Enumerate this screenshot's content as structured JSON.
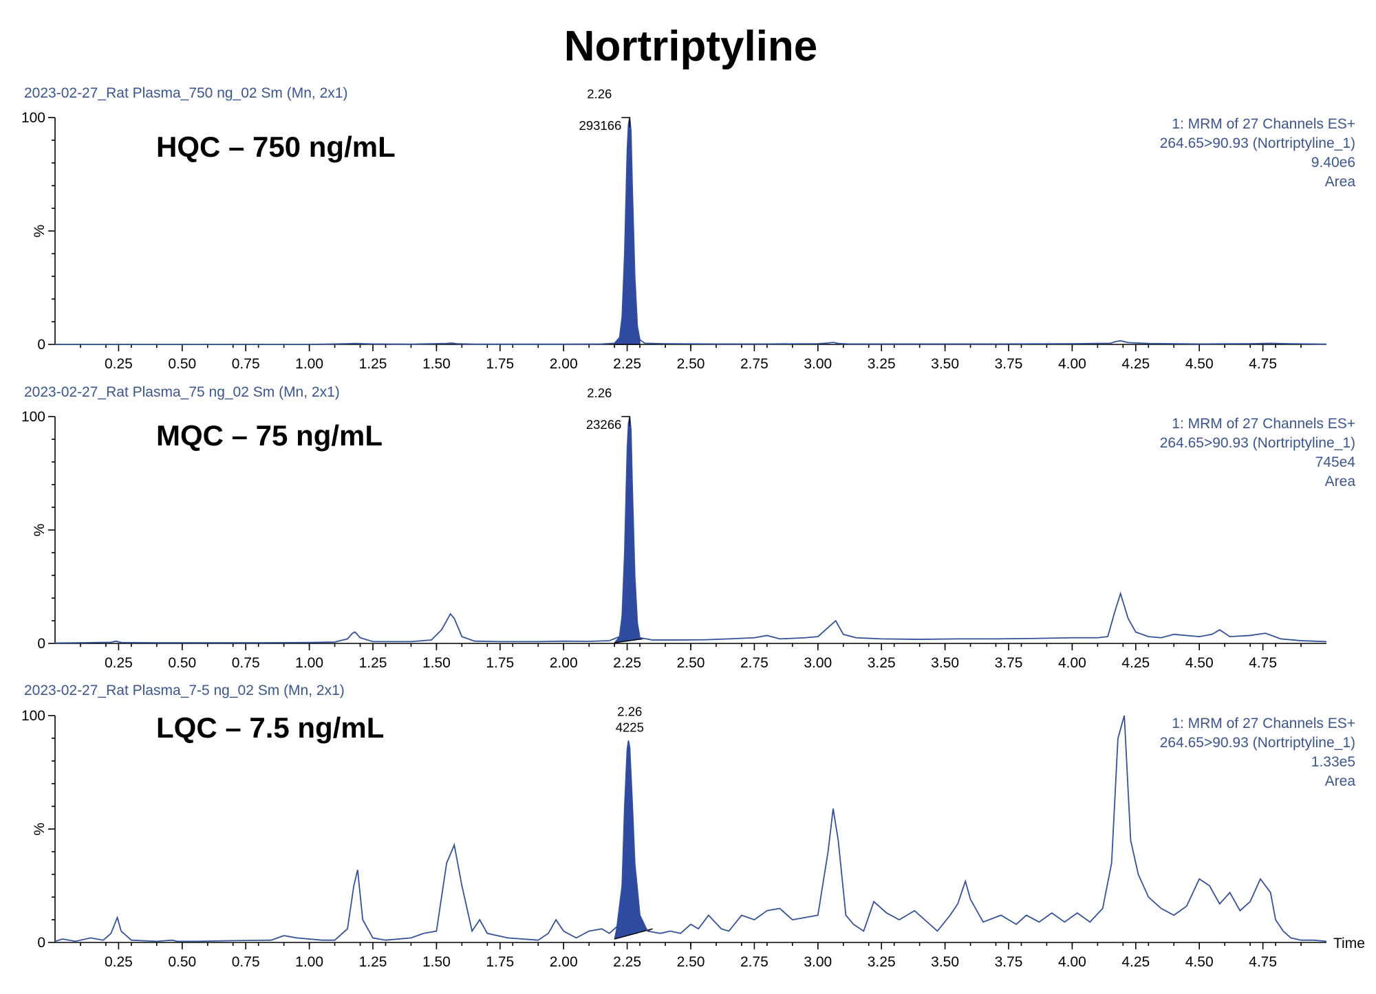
{
  "figure": {
    "title": "Nortriptyline",
    "x_axis_label": "Time",
    "y_axis_label": "%"
  },
  "chart_data": [
    {
      "type": "line",
      "panel_label": "HQC – 750 ng/mL",
      "sample_name": "2023-02-27_Rat Plasma_750 ng_02 Sm (Mn, 2x1)",
      "info_lines": [
        "1: MRM of 27 Channels ES+",
        "264.65>90.93 (Nortriptyline_1)",
        "9.40e6",
        "Area"
      ],
      "peak": {
        "rt": 2.26,
        "rt_label": "2.26",
        "area_label": "293166",
        "height": 100
      },
      "xlim": [
        0,
        5
      ],
      "ylim": [
        0,
        100
      ],
      "xticks": [
        "0.25",
        "0.50",
        "0.75",
        "1.00",
        "1.25",
        "1.50",
        "1.75",
        "2.00",
        "2.25",
        "2.50",
        "2.75",
        "3.00",
        "3.25",
        "3.50",
        "3.75",
        "4.00",
        "4.25",
        "4.50",
        "4.75"
      ],
      "yticks": [
        "0",
        "100"
      ],
      "x": [
        0.0,
        0.2,
        0.4,
        0.6,
        0.8,
        1.0,
        1.1,
        1.18,
        1.25,
        1.4,
        1.54,
        1.56,
        1.58,
        1.65,
        1.8,
        2.0,
        2.15,
        2.2,
        2.22,
        2.23,
        2.24,
        2.25,
        2.255,
        2.26,
        2.265,
        2.27,
        2.28,
        2.29,
        2.3,
        2.32,
        2.4,
        2.6,
        2.8,
        3.0,
        3.04,
        3.06,
        3.08,
        3.12,
        3.4,
        3.7,
        4.0,
        4.15,
        4.17,
        4.19,
        4.22,
        4.3,
        4.5,
        4.7,
        4.78,
        4.85,
        5.0
      ],
      "values": [
        0,
        0,
        0,
        0,
        0,
        0,
        0.2,
        0.4,
        0.2,
        0.1,
        0.4,
        0.6,
        0.3,
        0.1,
        0.1,
        0.1,
        0.2,
        0.5,
        3,
        12,
        40,
        85,
        97,
        100,
        94,
        70,
        30,
        8,
        2,
        0.5,
        0.3,
        0.2,
        0.2,
        0.3,
        0.6,
        0.9,
        0.4,
        0.2,
        0.2,
        0.2,
        0.3,
        0.5,
        1.2,
        1.6,
        0.8,
        0.4,
        0.2,
        0.3,
        0.5,
        0.3,
        0.1
      ],
      "shaded": {
        "x_start": 2.2,
        "x_end": 2.3,
        "baseline_start": 0,
        "baseline_end": 0
      }
    },
    {
      "type": "line",
      "panel_label": "MQC – 75 ng/mL",
      "sample_name": "2023-02-27_Rat Plasma_75 ng_02 Sm (Mn, 2x1)",
      "info_lines": [
        "1: MRM of 27 Channels ES+",
        "264.65>90.93 (Nortriptyline_1)",
        "745e4",
        "Area"
      ],
      "peak": {
        "rt": 2.26,
        "rt_label": "2.26",
        "area_label": "23266",
        "height": 100
      },
      "xlim": [
        0,
        5
      ],
      "ylim": [
        0,
        100
      ],
      "xticks": [
        "0.25",
        "0.50",
        "0.75",
        "1.00",
        "1.25",
        "1.50",
        "1.75",
        "2.00",
        "2.25",
        "2.50",
        "2.75",
        "3.00",
        "3.25",
        "3.50",
        "3.75",
        "4.00",
        "4.25",
        "4.50",
        "4.75"
      ],
      "yticks": [
        "0",
        "100"
      ],
      "x": [
        0.0,
        0.1,
        0.22,
        0.24,
        0.26,
        0.4,
        0.6,
        0.8,
        1.0,
        1.1,
        1.15,
        1.17,
        1.18,
        1.2,
        1.25,
        1.4,
        1.48,
        1.52,
        1.555,
        1.57,
        1.6,
        1.65,
        1.75,
        1.9,
        2.0,
        2.1,
        2.18,
        2.22,
        2.23,
        2.24,
        2.25,
        2.255,
        2.26,
        2.265,
        2.27,
        2.28,
        2.29,
        2.3,
        2.35,
        2.45,
        2.55,
        2.65,
        2.75,
        2.8,
        2.85,
        2.95,
        3.0,
        3.04,
        3.07,
        3.1,
        3.15,
        3.25,
        3.4,
        3.55,
        3.7,
        3.85,
        4.0,
        4.1,
        4.14,
        4.165,
        4.19,
        4.22,
        4.25,
        4.3,
        4.35,
        4.4,
        4.5,
        4.55,
        4.58,
        4.62,
        4.7,
        4.76,
        4.82,
        4.9,
        5.0
      ],
      "values": [
        0.2,
        0.3,
        0.5,
        1,
        0.4,
        0.3,
        0.3,
        0.3,
        0.4,
        0.6,
        2,
        4.5,
        5,
        2.5,
        0.8,
        0.8,
        1.5,
        6,
        13,
        11,
        3,
        1,
        0.8,
        0.8,
        1,
        0.9,
        1.2,
        3,
        12,
        40,
        85,
        97,
        100,
        94,
        70,
        30,
        9,
        2.5,
        1.5,
        1.5,
        1.6,
        2,
        2.5,
        3.5,
        2,
        2.5,
        3,
        7,
        10,
        4,
        2.5,
        2,
        1.8,
        2,
        2,
        2.2,
        2.5,
        2.5,
        3,
        13,
        22,
        11,
        5,
        3,
        2.5,
        4,
        3,
        4,
        6,
        3,
        3.5,
        4.5,
        2,
        1.2,
        0.8
      ],
      "shaded": {
        "x_start": 2.2,
        "x_end": 2.31,
        "baseline_start": 0.3,
        "baseline_end": 2
      }
    },
    {
      "type": "line",
      "panel_label": "LQC – 7.5 ng/mL",
      "sample_name": "2023-02-27_Rat Plasma_7-5 ng_02 Sm (Mn, 2x1)",
      "info_lines": [
        "1: MRM of 27 Channels ES+",
        "264.65>90.93 (Nortriptyline_1)",
        "1.33e5",
        "Area"
      ],
      "peak": {
        "rt": 2.26,
        "rt_label": "2.26",
        "area_label": "4225",
        "height": 89
      },
      "xlim": [
        0,
        5
      ],
      "ylim": [
        0,
        100
      ],
      "xticks": [
        "0.25",
        "0.50",
        "0.75",
        "1.00",
        "1.25",
        "1.50",
        "1.75",
        "2.00",
        "2.25",
        "2.50",
        "2.75",
        "3.00",
        "3.25",
        "3.50",
        "3.75",
        "4.00",
        "4.25",
        "4.50",
        "4.75"
      ],
      "yticks": [
        "0",
        "100"
      ],
      "x": [
        0.0,
        0.03,
        0.08,
        0.14,
        0.19,
        0.22,
        0.245,
        0.26,
        0.3,
        0.4,
        0.46,
        0.48,
        0.55,
        0.7,
        0.85,
        0.9,
        0.95,
        1.05,
        1.1,
        1.15,
        1.175,
        1.19,
        1.21,
        1.25,
        1.3,
        1.4,
        1.45,
        1.5,
        1.54,
        1.57,
        1.6,
        1.64,
        1.67,
        1.7,
        1.78,
        1.9,
        1.94,
        1.97,
        2.0,
        2.05,
        2.1,
        2.15,
        2.18,
        2.21,
        2.23,
        2.24,
        2.25,
        2.255,
        2.26,
        2.27,
        2.28,
        2.3,
        2.33,
        2.38,
        2.42,
        2.46,
        2.5,
        2.53,
        2.57,
        2.62,
        2.65,
        2.7,
        2.75,
        2.8,
        2.85,
        2.9,
        2.95,
        3.0,
        3.04,
        3.06,
        3.08,
        3.11,
        3.14,
        3.18,
        3.22,
        3.27,
        3.32,
        3.38,
        3.42,
        3.47,
        3.52,
        3.55,
        3.58,
        3.6,
        3.65,
        3.72,
        3.78,
        3.82,
        3.87,
        3.92,
        3.97,
        4.02,
        4.07,
        4.12,
        4.155,
        4.18,
        4.205,
        4.23,
        4.26,
        4.3,
        4.35,
        4.4,
        4.45,
        4.5,
        4.54,
        4.58,
        4.62,
        4.66,
        4.7,
        4.74,
        4.78,
        4.8,
        4.83,
        4.86,
        4.9,
        4.95,
        5.0
      ],
      "values": [
        0.5,
        1.5,
        0.5,
        2,
        1,
        4,
        11,
        5,
        1,
        0.5,
        1,
        0.5,
        0.5,
        0.8,
        1,
        3,
        2,
        1,
        1,
        6,
        25,
        32,
        10,
        2,
        1,
        2,
        4,
        5,
        35,
        43,
        25,
        5,
        10,
        4,
        2,
        1,
        4,
        10,
        5,
        2,
        5,
        6,
        4,
        7,
        25,
        60,
        85,
        89,
        86,
        62,
        35,
        12,
        5,
        4,
        5,
        4,
        8,
        6,
        12,
        6,
        5,
        12,
        10,
        14,
        15,
        10,
        11,
        12,
        40,
        59,
        45,
        12,
        8,
        5,
        18,
        13,
        10,
        14,
        10,
        5,
        12,
        17,
        27,
        19,
        9,
        12,
        8,
        12,
        9,
        13,
        9,
        13,
        9,
        15,
        35,
        90,
        100,
        45,
        30,
        20,
        15,
        12,
        16,
        28,
        25,
        17,
        22,
        14,
        18,
        28,
        22,
        10,
        5,
        2,
        1,
        1,
        0.5
      ],
      "shaded": {
        "x_start": 2.2,
        "x_end": 2.35,
        "baseline_start": 1.5,
        "baseline_end": 6
      }
    }
  ]
}
